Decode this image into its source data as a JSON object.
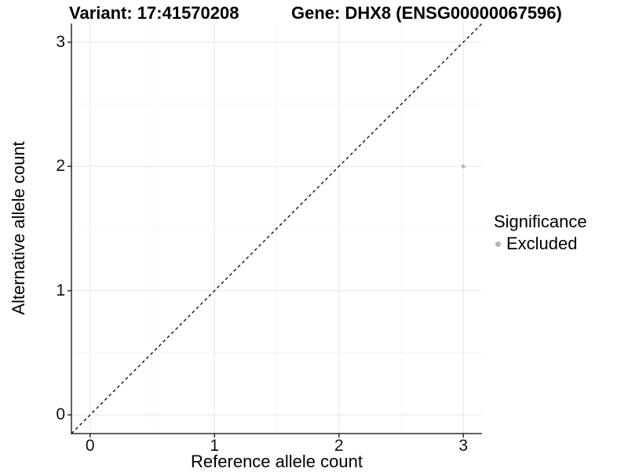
{
  "titles": {
    "variant": "Variant: 17:41570208",
    "gene": "Gene: DHX8 (ENSG00000067596)"
  },
  "axes": {
    "x_title": "Reference allele count",
    "y_title": "Alternative allele count"
  },
  "legend": {
    "title": "Significance",
    "items": [
      {
        "label": "Excluded",
        "color": "#b5b5b5"
      }
    ]
  },
  "colors": {
    "background": "#ffffff",
    "major_grid": "#ebebeb",
    "minor_grid": "#f4f4f4",
    "axis_line": "#2b2b2b",
    "tick_mark": "#2b2b2b",
    "reference_line": "#000000",
    "point": "#b5b5b5"
  },
  "chart_data": {
    "type": "scatter",
    "title_left": "Variant: 17:41570208",
    "title_right": "Gene: DHX8 (ENSG00000067596)",
    "xlabel": "Reference allele count",
    "ylabel": "Alternative allele count",
    "xlim": [
      -0.15,
      3.15
    ],
    "ylim": [
      -0.15,
      3.15
    ],
    "x_ticks": [
      0,
      1,
      2,
      3
    ],
    "y_ticks": [
      0,
      1,
      2,
      3
    ],
    "x_minor_ticks": [
      0.5,
      1.5,
      2.5
    ],
    "y_minor_ticks": [
      0.5,
      1.5,
      2.5
    ],
    "grid": true,
    "legend_position": "right",
    "series": [
      {
        "name": "Excluded",
        "color": "#b5b5b5",
        "marker_radius": 2.4,
        "points": [
          {
            "x": 3,
            "y": 2
          }
        ]
      }
    ],
    "reference_line": {
      "style": "dashed",
      "slope": 1,
      "intercept": 0,
      "color": "#000000",
      "span": "panel-diagonal"
    }
  }
}
